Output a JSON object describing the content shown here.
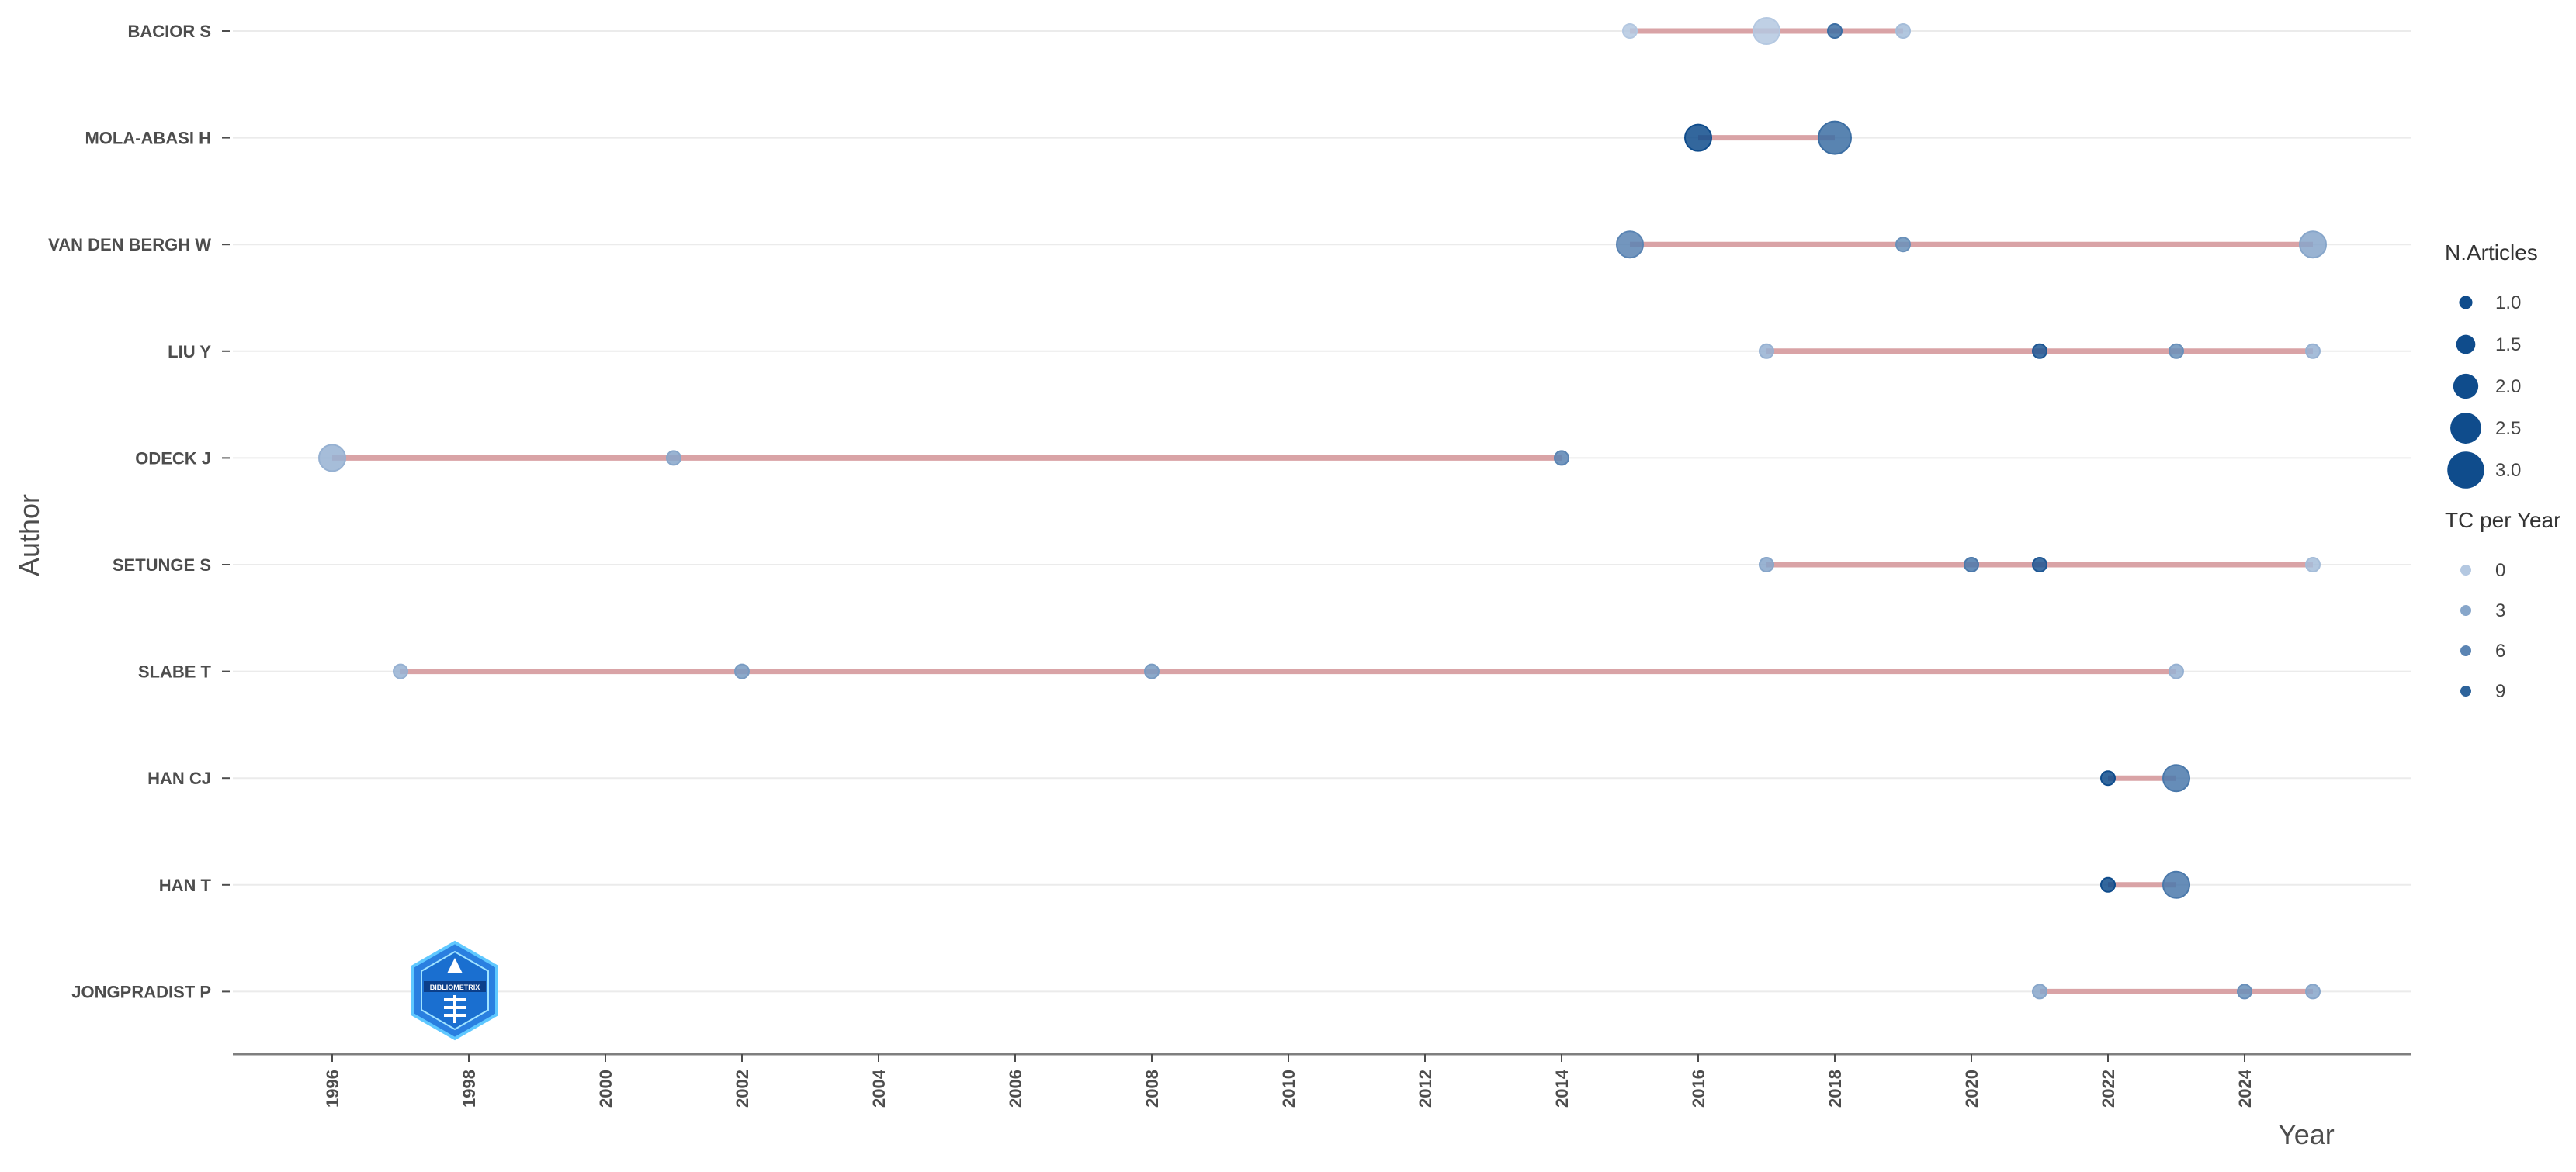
{
  "chart_data": {
    "type": "scatter",
    "title": "",
    "xlabel": "Year",
    "ylabel": "Author",
    "xlim": [
      1994.8,
      2026.5
    ],
    "x_ticks": [
      1996,
      1998,
      2000,
      2002,
      2004,
      2006,
      2008,
      2010,
      2012,
      2014,
      2016,
      2018,
      2020,
      2022,
      2024
    ],
    "grid": "horizontal",
    "legend_position": "right",
    "colors": {
      "line": "#d9a3a6",
      "point_low": "#b4c8e1",
      "point_high": "#0f4c8c",
      "grid": "#ebebeb",
      "axis": "#7f7f7f"
    },
    "authors": [
      {
        "name": "BACIOR S",
        "points": [
          {
            "year": 2015,
            "articles": 1,
            "tc": 0
          },
          {
            "year": 2017,
            "articles": 2,
            "tc": 0
          },
          {
            "year": 2018,
            "articles": 1,
            "tc": 8
          },
          {
            "year": 2019,
            "articles": 1,
            "tc": 1
          }
        ]
      },
      {
        "name": "MOLA-ABASI H",
        "points": [
          {
            "year": 2016,
            "articles": 2,
            "tc": 11
          },
          {
            "year": 2018,
            "articles": 2.5,
            "tc": 8
          }
        ]
      },
      {
        "name": "VAN DEN BERGH W",
        "points": [
          {
            "year": 2015,
            "articles": 2,
            "tc": 6
          },
          {
            "year": 2019,
            "articles": 1,
            "tc": 5
          },
          {
            "year": 2025,
            "articles": 2,
            "tc": 3
          }
        ]
      },
      {
        "name": "LIU Y",
        "points": [
          {
            "year": 2017,
            "articles": 1,
            "tc": 2
          },
          {
            "year": 2021,
            "articles": 1,
            "tc": 10
          },
          {
            "year": 2023,
            "articles": 1,
            "tc": 5
          },
          {
            "year": 2025,
            "articles": 1,
            "tc": 2
          }
        ]
      },
      {
        "name": "ODECK J",
        "points": [
          {
            "year": 1996,
            "articles": 2,
            "tc": 2
          },
          {
            "year": 2001,
            "articles": 1,
            "tc": 3
          },
          {
            "year": 2014,
            "articles": 1,
            "tc": 6
          }
        ]
      },
      {
        "name": "SETUNGE S",
        "points": [
          {
            "year": 2017,
            "articles": 1,
            "tc": 3
          },
          {
            "year": 2020,
            "articles": 1,
            "tc": 7
          },
          {
            "year": 2021,
            "articles": 1,
            "tc": 10
          },
          {
            "year": 2025,
            "articles": 1,
            "tc": 1
          }
        ]
      },
      {
        "name": "SLABE T",
        "points": [
          {
            "year": 1997,
            "articles": 1,
            "tc": 2
          },
          {
            "year": 2002,
            "articles": 1,
            "tc": 4
          },
          {
            "year": 2008,
            "articles": 1,
            "tc": 4
          },
          {
            "year": 2023,
            "articles": 1,
            "tc": 2
          }
        ]
      },
      {
        "name": "HAN CJ",
        "points": [
          {
            "year": 2022,
            "articles": 1,
            "tc": 11
          },
          {
            "year": 2023,
            "articles": 2,
            "tc": 7
          }
        ]
      },
      {
        "name": "HAN T",
        "points": [
          {
            "year": 2022,
            "articles": 1,
            "tc": 11
          },
          {
            "year": 2023,
            "articles": 2,
            "tc": 7
          }
        ]
      },
      {
        "name": "JONGPRADIST P",
        "points": [
          {
            "year": 2021,
            "articles": 1,
            "tc": 3
          },
          {
            "year": 2024,
            "articles": 1,
            "tc": 5
          },
          {
            "year": 2025,
            "articles": 1,
            "tc": 3
          }
        ]
      }
    ],
    "legend_size": {
      "title": "N.Articles",
      "values": [
        "1.0",
        "1.5",
        "2.0",
        "2.5",
        "3.0"
      ]
    },
    "legend_color": {
      "title": "TC per Year",
      "values": [
        "0",
        "3",
        "6",
        "9"
      ]
    }
  },
  "logo": {
    "text": "BIBLIOMETRIX"
  }
}
